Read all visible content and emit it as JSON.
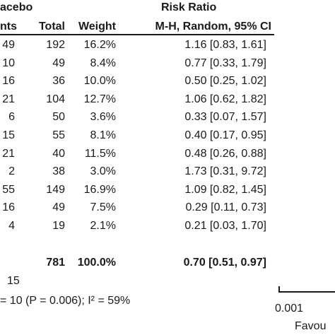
{
  "header": {
    "group_partial": "acebo",
    "subgroup_partial": "nts",
    "total": "Total",
    "weight": "Weight",
    "risk_ratio": "Risk Ratio",
    "method": "M-H, Random, 95% CI"
  },
  "rows": [
    {
      "events": "49",
      "total": "192",
      "weight": "16.2%",
      "ci": "1.16 [0.83, 1.61]"
    },
    {
      "events": "10",
      "total": "49",
      "weight": "8.4%",
      "ci": "0.77 [0.33, 1.79]"
    },
    {
      "events": "16",
      "total": "36",
      "weight": "10.0%",
      "ci": "0.50 [0.25, 1.02]"
    },
    {
      "events": "21",
      "total": "104",
      "weight": "12.7%",
      "ci": "1.06 [0.62, 1.82]"
    },
    {
      "events": "6",
      "total": "50",
      "weight": "3.6%",
      "ci": "0.33 [0.07, 1.57]"
    },
    {
      "events": "15",
      "total": "55",
      "weight": "8.1%",
      "ci": "0.40 [0.17, 0.95]"
    },
    {
      "events": "21",
      "total": "40",
      "weight": "11.5%",
      "ci": "0.48 [0.26, 0.88]"
    },
    {
      "events": "2",
      "total": "38",
      "weight": "3.0%",
      "ci": "1.73 [0.31, 9.72]"
    },
    {
      "events": "55",
      "total": "149",
      "weight": "16.9%",
      "ci": "1.09 [0.82, 1.45]"
    },
    {
      "events": "16",
      "total": "49",
      "weight": "7.5%",
      "ci": "0.29 [0.11, 0.73]"
    },
    {
      "events": "4",
      "total": "19",
      "weight": "2.1%",
      "ci": "0.21 [0.03, 1.70]"
    }
  ],
  "total_row": {
    "total": "781",
    "weight": "100.0%",
    "ci": "0.70 [0.51, 0.97]"
  },
  "events_partial": "15",
  "heterogeneity_partial": "= 10 (P = 0.006); I² = 59%",
  "axis": {
    "min_label": "0.001",
    "favours_partial": "Favou"
  }
}
